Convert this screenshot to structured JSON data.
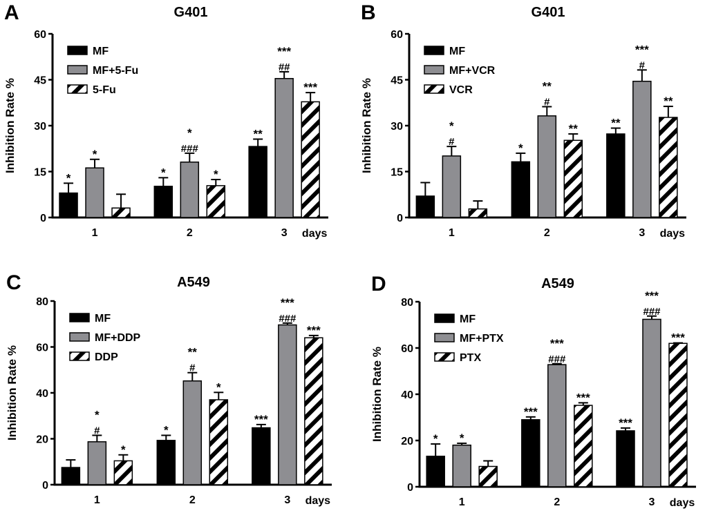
{
  "colors": {
    "MF": "#000000",
    "combo": "#8e8e92",
    "drug": "hatched-black-white"
  },
  "chart_data": [
    {
      "panel": "A",
      "type": "bar",
      "title": "G401",
      "ylabel": "Inhibition Rate %",
      "xlabel": "days",
      "categories": [
        "1",
        "2",
        "3"
      ],
      "ylim": [
        0,
        60
      ],
      "yticks": [
        0,
        15,
        30,
        45,
        60
      ],
      "legend": "top-left",
      "grid": false,
      "series": [
        {
          "name": "MF",
          "values": [
            8,
            10.2,
            23.2
          ],
          "errors": [
            3.2,
            2.8,
            2.4
          ],
          "marks": [
            "*",
            "*",
            "**"
          ]
        },
        {
          "name": "MF+5-Fu",
          "values": [
            16.2,
            18.1,
            45.4
          ],
          "errors": [
            2.8,
            2.9,
            2.2
          ],
          "marks": [
            "*",
            "*\n###",
            "***\n##"
          ]
        },
        {
          "name": "5-Fu",
          "values": [
            3.1,
            10.4,
            37.8
          ],
          "errors": [
            4.5,
            2.0,
            3.0
          ],
          "marks": [
            "",
            "*",
            "***"
          ]
        }
      ]
    },
    {
      "panel": "B",
      "type": "bar",
      "title": "G401",
      "ylabel": "Inhibition Rate %",
      "xlabel": "days",
      "categories": [
        "1",
        "2",
        "3"
      ],
      "ylim": [
        0,
        60
      ],
      "yticks": [
        0,
        15,
        30,
        45,
        60
      ],
      "legend": "top-left",
      "grid": false,
      "series": [
        {
          "name": "MF",
          "values": [
            7,
            18.2,
            27.3
          ],
          "errors": [
            4.4,
            2.8,
            1.9
          ],
          "marks": [
            "",
            "*",
            "**"
          ]
        },
        {
          "name": "MF+VCR",
          "values": [
            20.1,
            33.2,
            44.5
          ],
          "errors": [
            3.1,
            3.0,
            3.7
          ],
          "marks": [
            "*\n#",
            "**\n#",
            "***\n#"
          ]
        },
        {
          "name": "VCR",
          "values": [
            2.8,
            25.2,
            32.7
          ],
          "errors": [
            2.6,
            2.1,
            3.6
          ],
          "marks": [
            "",
            "**",
            "**"
          ]
        }
      ]
    },
    {
      "panel": "C",
      "type": "bar",
      "title": "A549",
      "ylabel": "Inhibition Rate %",
      "xlabel": "days",
      "categories": [
        "1",
        "2",
        "3"
      ],
      "ylim": [
        0,
        80
      ],
      "yticks": [
        0,
        20,
        40,
        60,
        80
      ],
      "legend": "top-left",
      "grid": false,
      "series": [
        {
          "name": "MF",
          "values": [
            7.5,
            19.3,
            24.8
          ],
          "errors": [
            3.3,
            2.2,
            1.4
          ],
          "marks": [
            "",
            "*",
            "***"
          ]
        },
        {
          "name": "MF+DDP",
          "values": [
            18.7,
            45.2,
            69.6
          ],
          "errors": [
            2.8,
            3.6,
            0.8
          ],
          "marks": [
            "*\n#",
            "**\n#",
            "***\n###"
          ]
        },
        {
          "name": "DDP",
          "values": [
            10.4,
            37,
            64
          ],
          "errors": [
            2.6,
            3.2,
            1.0
          ],
          "marks": [
            "*",
            "*",
            "***"
          ]
        }
      ]
    },
    {
      "panel": "D",
      "type": "bar",
      "title": "A549",
      "ylabel": "Inhibition Rate %",
      "xlabel": "days",
      "categories": [
        "1",
        "2",
        "3"
      ],
      "ylim": [
        0,
        80
      ],
      "yticks": [
        0,
        20,
        40,
        60,
        80
      ],
      "legend": "top-left",
      "grid": false,
      "series": [
        {
          "name": "MF",
          "values": [
            13.2,
            29,
            24.2
          ],
          "errors": [
            5.3,
            1.2,
            1.2
          ],
          "marks": [
            "*",
            "***",
            "***"
          ]
        },
        {
          "name": "MF+PTX",
          "values": [
            18,
            52.8,
            72.4
          ],
          "errors": [
            0.8,
            0.4,
            1.4
          ],
          "marks": [
            "*",
            "***\n###",
            "***\n###"
          ]
        },
        {
          "name": "PTX",
          "values": [
            8.8,
            35.2,
            62
          ],
          "errors": [
            2.4,
            1.1,
            0.2
          ],
          "marks": [
            "",
            "***",
            "***"
          ]
        }
      ]
    }
  ]
}
